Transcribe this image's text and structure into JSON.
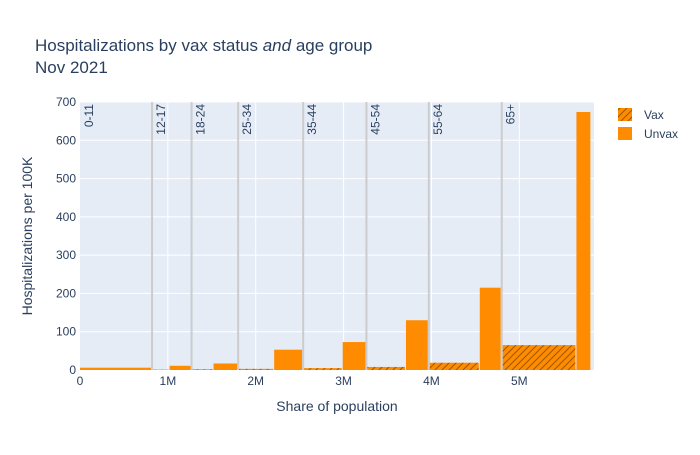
{
  "title_line1_prefix": "Hospitalizations by vax status ",
  "title_line1_emph": "and",
  "title_line1_suffix": " age group",
  "title_line2": "Nov 2021",
  "colors": {
    "plot_bg": "#e5ecf6",
    "bar": "#ff8c00",
    "divider": "#cccccc",
    "text": "#2a3f5f"
  },
  "chart_data": {
    "type": "bar",
    "xlabel": "Share of population",
    "ylabel": "Hospitalizations per 100K",
    "xlim": [
      0,
      5.85
    ],
    "ylim": [
      0,
      700
    ],
    "x_unit": "millions",
    "x_ticks": [
      {
        "value": 0,
        "label": "0"
      },
      {
        "value": 1,
        "label": "1M"
      },
      {
        "value": 2,
        "label": "2M"
      },
      {
        "value": 3,
        "label": "3M"
      },
      {
        "value": 4,
        "label": "4M"
      },
      {
        "value": 5,
        "label": "5M"
      }
    ],
    "y_ticks": [
      0,
      100,
      200,
      300,
      400,
      500,
      600,
      700
    ],
    "grid": true,
    "legend_position": "top-right",
    "series": [
      {
        "name": "Vax",
        "pattern": "hatched"
      },
      {
        "name": "Unvax",
        "pattern": "solid"
      }
    ],
    "groups": [
      {
        "label": "0-11",
        "start": 0.0,
        "vax_share": 0.0,
        "unvax_share": 0.82,
        "vax": 0,
        "unvax": 6
      },
      {
        "label": "12-17",
        "start": 0.82,
        "vax_share": 0.2,
        "unvax_share": 0.25,
        "vax": 1,
        "unvax": 11
      },
      {
        "label": "18-24",
        "start": 1.27,
        "vax_share": 0.25,
        "unvax_share": 0.28,
        "vax": 2,
        "unvax": 17
      },
      {
        "label": "25-34",
        "start": 1.8,
        "vax_share": 0.41,
        "unvax_share": 0.33,
        "vax": 3,
        "unvax": 53
      },
      {
        "label": "35-44",
        "start": 2.54,
        "vax_share": 0.45,
        "unvax_share": 0.27,
        "vax": 5,
        "unvax": 73
      },
      {
        "label": "45-54",
        "start": 3.26,
        "vax_share": 0.45,
        "unvax_share": 0.26,
        "vax": 8,
        "unvax": 130
      },
      {
        "label": "55-64",
        "start": 3.97,
        "vax_share": 0.58,
        "unvax_share": 0.25,
        "vax": 19,
        "unvax": 215
      },
      {
        "label": "65+",
        "start": 4.8,
        "vax_share": 0.85,
        "unvax_share": 0.17,
        "vax": 65,
        "unvax": 674
      }
    ]
  }
}
